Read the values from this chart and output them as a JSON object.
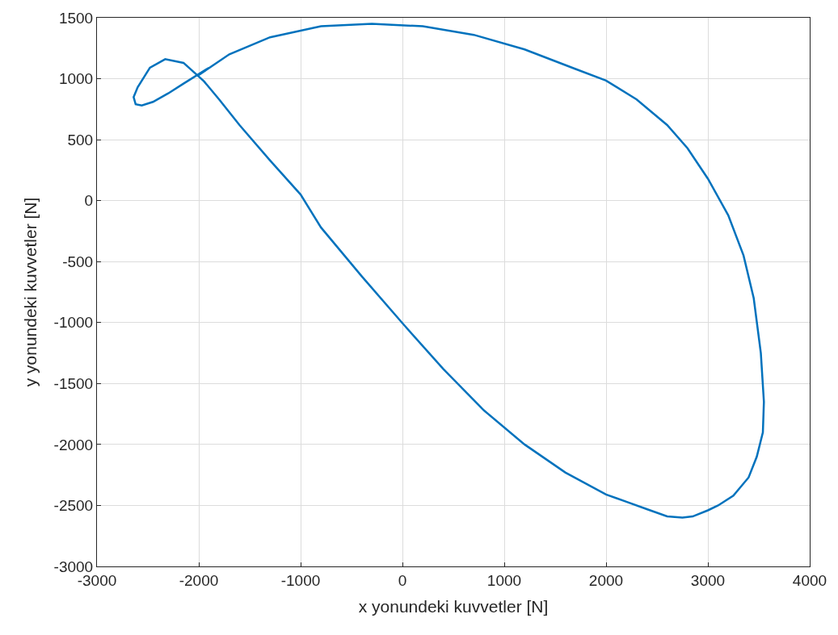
{
  "chart_data": {
    "type": "line",
    "xlabel": "x yonundeki kuvvetler [N]",
    "ylabel": "y yonundeki kuvvetler [N]",
    "series": [
      {
        "color": "#0072bd",
        "x": [
          -2000,
          -1700,
          -1300,
          -800,
          -300,
          200,
          700,
          1200,
          1700,
          2000,
          2300,
          2600,
          2800,
          3000,
          3200,
          3350,
          3450,
          3520,
          3550,
          3540,
          3480,
          3400,
          3250,
          3100,
          3000,
          2850,
          2750,
          2600,
          2400,
          2200,
          2000,
          1600,
          1200,
          800,
          400,
          0,
          -400,
          -800,
          -1000,
          -1300,
          -1600,
          -1800,
          -1950,
          -2150,
          -2330,
          -2480,
          -2600,
          -2640,
          -2620,
          -2560,
          -2450,
          -2300,
          -2150,
          -1900
        ],
        "values": [
          1030,
          1200,
          1340,
          1430,
          1450,
          1430,
          1360,
          1240,
          1080,
          985,
          830,
          620,
          430,
          180,
          -120,
          -450,
          -800,
          -1250,
          -1650,
          -1900,
          -2100,
          -2270,
          -2420,
          -2500,
          -2540,
          -2590,
          -2600,
          -2590,
          -2530,
          -2470,
          -2410,
          -2230,
          -2000,
          -1720,
          -1380,
          -1005,
          -620,
          -220,
          50,
          330,
          620,
          830,
          980,
          1130,
          1160,
          1090,
          930,
          850,
          790,
          780,
          810,
          880,
          960,
          1090
        ]
      }
    ],
    "xlim": [
      -3000,
      4000
    ],
    "ylim": [
      -3000,
      1500
    ],
    "xticks": [
      -3000,
      -2000,
      -1000,
      0,
      1000,
      2000,
      3000,
      4000
    ],
    "yticks": [
      -3000,
      -2500,
      -2000,
      -1500,
      -1000,
      -500,
      0,
      500,
      1000,
      1500
    ],
    "grid": true,
    "marker": "none",
    "line_style": "solid"
  }
}
